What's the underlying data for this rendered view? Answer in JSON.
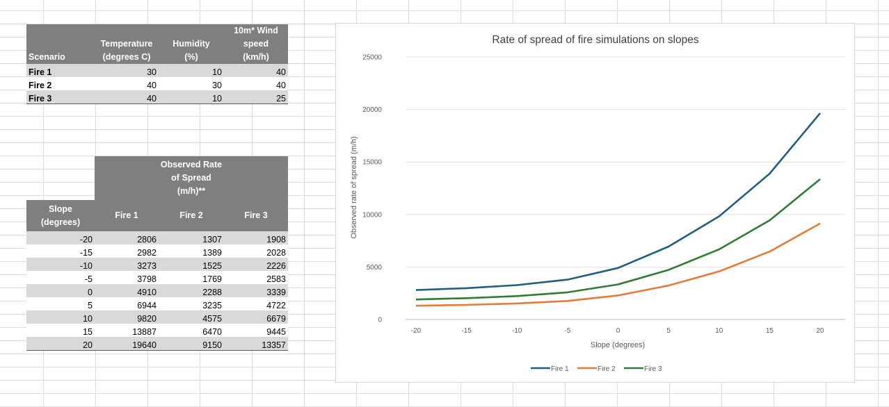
{
  "scenario_table": {
    "headers": {
      "scenario": "Scenario",
      "temperature": [
        "Temperature",
        "(degrees C)"
      ],
      "humidity": [
        "Humidity",
        "(%)"
      ],
      "wind": [
        "10m* Wind",
        "speed",
        "(km/h)"
      ]
    },
    "rows": [
      {
        "name": "Fire 1",
        "temperature": "30",
        "humidity": "10",
        "wind": "40"
      },
      {
        "name": "Fire 2",
        "temperature": "40",
        "humidity": "30",
        "wind": "40"
      },
      {
        "name": "Fire 3",
        "temperature": "40",
        "humidity": "10",
        "wind": "25"
      }
    ]
  },
  "ros_table": {
    "group_header": [
      "Observed Rate",
      "of Spread",
      "(m/h)**"
    ],
    "slope_header": [
      "Slope",
      "(degrees)"
    ],
    "columns": [
      "Fire 1",
      "Fire 2",
      "Fire 3"
    ],
    "rows": [
      {
        "slope": "-20",
        "fire1": "2806",
        "fire2": "1307",
        "fire3": "1908"
      },
      {
        "slope": "-15",
        "fire1": "2982",
        "fire2": "1389",
        "fire3": "2028"
      },
      {
        "slope": "-10",
        "fire1": "3273",
        "fire2": "1525",
        "fire3": "2226"
      },
      {
        "slope": "-5",
        "fire1": "3798",
        "fire2": "1769",
        "fire3": "2583"
      },
      {
        "slope": "0",
        "fire1": "4910",
        "fire2": "2288",
        "fire3": "3339"
      },
      {
        "slope": "5",
        "fire1": "6944",
        "fire2": "3235",
        "fire3": "4722"
      },
      {
        "slope": "10",
        "fire1": "9820",
        "fire2": "4575",
        "fire3": "6679"
      },
      {
        "slope": "15",
        "fire1": "13887",
        "fire2": "6470",
        "fire3": "9445"
      },
      {
        "slope": "20",
        "fire1": "19640",
        "fire2": "9150",
        "fire3": "13357"
      }
    ]
  },
  "chart_data": {
    "type": "line",
    "title": "Rate of spread of fire simulations on slopes",
    "xlabel": "Slope (degrees)",
    "ylabel": "Observed rate of spread (m/h)",
    "x": [
      -20,
      -15,
      -10,
      -5,
      0,
      5,
      10,
      15,
      20
    ],
    "xlim": [
      -20,
      20
    ],
    "ylim": [
      0,
      25000
    ],
    "yticks": [
      0,
      5000,
      10000,
      15000,
      20000,
      25000
    ],
    "grid": "horizontal",
    "legend": "bottom",
    "series": [
      {
        "name": "Fire 1",
        "color": "#1f5f7f",
        "values": [
          2806,
          2982,
          3273,
          3798,
          4910,
          6944,
          9820,
          13887,
          19640
        ]
      },
      {
        "name": "Fire 2",
        "color": "#e87a35",
        "values": [
          1307,
          1389,
          1525,
          1769,
          2288,
          3235,
          4575,
          6470,
          9150
        ]
      },
      {
        "name": "Fire 3",
        "color": "#2e7d32",
        "values": [
          1908,
          2028,
          2226,
          2583,
          3339,
          4722,
          6679,
          9445,
          13357
        ]
      }
    ]
  }
}
